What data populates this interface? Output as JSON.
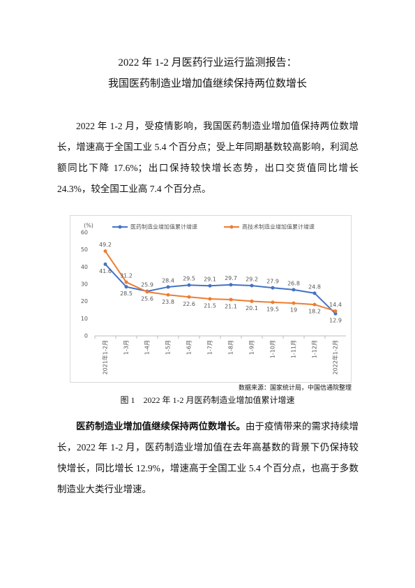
{
  "header": {
    "title_line1": "2022 年 1-2 月医药行业运行监测报告：",
    "title_line2": "我国医药制造业增加值继续保持两位数增长"
  },
  "paragraph1": "2022 年 1-2 月，受疫情影响，我国医药制造业增加值保持两位数增长，增速高于全国工业 5.4 个百分点；受上年同期基数较高影响，利润总额同比下降 17.6%；出口保持较快增长态势，出口交货值同比增长 24.3%，较全国工业高 7.4 个百分点。",
  "chart_data": {
    "type": "line",
    "y_label": "(%)",
    "categories": [
      "2021年1-2月",
      "1-3月",
      "1-4月",
      "1-5月",
      "1-6月",
      "1-7月",
      "1-8月",
      "1-9月",
      "1-10月",
      "1-11月",
      "1-12月",
      "2022年1-2月"
    ],
    "series": [
      {
        "name": "医药制造业增加值累计增速",
        "color": "#4472c4",
        "values": [
          41.6,
          28.5,
          25.9,
          28.4,
          29.5,
          29.1,
          29.7,
          29.2,
          27.9,
          26.8,
          24.8,
          12.9
        ]
      },
      {
        "name": "高技术制造业增加值累计增速",
        "color": "#ed7d31",
        "values": [
          49.2,
          31.2,
          25.6,
          23.8,
          22.6,
          21.5,
          21.1,
          20.1,
          19.5,
          19,
          18.2,
          14.4
        ]
      }
    ],
    "ylim": [
      0,
      60
    ],
    "yticks": [
      0,
      10,
      20,
      30,
      40,
      50,
      60
    ],
    "grid": false,
    "legend": "top"
  },
  "source": "数据来源：国家统计局，中国信通院整理",
  "figure_caption": {
    "label": "图 1",
    "title": "2022 年 1-2 月医药制造业增加值累计增速"
  },
  "paragraph2": {
    "bold": "医药制造业增加值继续保持两位数增长。",
    "text": "由于疫情带来的需求持续增长，2022 年 1-2 月，医药制造业增加值在去年高基数的背景下仍保持较快增长，同比增长 12.9%，增速高于全国工业 5.4 个百分点，也高于多数制造业大类行业增速。"
  }
}
